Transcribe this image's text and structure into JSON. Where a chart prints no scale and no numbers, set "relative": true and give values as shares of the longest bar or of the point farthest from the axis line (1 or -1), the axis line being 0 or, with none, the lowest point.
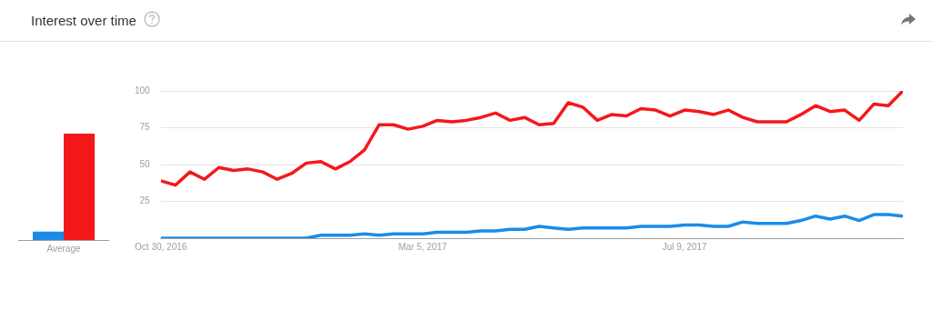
{
  "chart_data": [
    {
      "type": "bar",
      "categories": [
        "Average"
      ],
      "relative": true,
      "grid": false,
      "series": [
        {
          "color": "#1a8ce8",
          "values": [
            0.08
          ]
        },
        {
          "color": "#f4181b",
          "values": [
            1
          ]
        }
      ]
    },
    {
      "type": "line",
      "title": "Interest over time",
      "grid": "y",
      "legend": false,
      "x": [
        "2016-10-30",
        "2016-11-06",
        "2016-11-13",
        "2016-11-20",
        "2016-11-27",
        "2016-12-04",
        "2016-12-11",
        "2016-12-18",
        "2016-12-25",
        "2017-01-01",
        "2017-01-08",
        "2017-01-15",
        "2017-01-22",
        "2017-01-29",
        "2017-02-05",
        "2017-02-12",
        "2017-02-19",
        "2017-02-26",
        "2017-03-05",
        "2017-03-12",
        "2017-03-19",
        "2017-03-26",
        "2017-04-02",
        "2017-04-09",
        "2017-04-16",
        "2017-04-23",
        "2017-04-30",
        "2017-05-07",
        "2017-05-14",
        "2017-05-21",
        "2017-05-28",
        "2017-06-04",
        "2017-06-11",
        "2017-06-18",
        "2017-06-25",
        "2017-07-02",
        "2017-07-09",
        "2017-07-16",
        "2017-07-23",
        "2017-07-30",
        "2017-08-06",
        "2017-08-13",
        "2017-08-20",
        "2017-08-27",
        "2017-09-03",
        "2017-09-10",
        "2017-09-17",
        "2017-09-24",
        "2017-10-01",
        "2017-10-08",
        "2017-10-15",
        "2017-10-22"
      ],
      "xlim": [
        "2016-10-30",
        "2017-10-22"
      ],
      "xticks": [
        {
          "value": "2016-10-30",
          "label": "Oct 30, 2016"
        },
        {
          "value": "2017-03-05",
          "label": "Mar 5, 2017"
        },
        {
          "value": "2017-07-09",
          "label": "Jul 9, 2017"
        }
      ],
      "ylim": [
        0,
        100
      ],
      "yticks": [
        25,
        50,
        75,
        100
      ],
      "series": [
        {
          "color": "#1a8ce8",
          "values": [
            0,
            0,
            0,
            0,
            0,
            0,
            0,
            0,
            0,
            0,
            0,
            2,
            2,
            2,
            3,
            2,
            3,
            3,
            3,
            4,
            4,
            4,
            5,
            5,
            6,
            6,
            8,
            7,
            6,
            7,
            7,
            7,
            7,
            8,
            8,
            8,
            9,
            9,
            8,
            8,
            11,
            10,
            10,
            10,
            12,
            15,
            13,
            15,
            12,
            16,
            16,
            15
          ]
        },
        {
          "color": "#f4181b",
          "values": [
            39,
            36,
            45,
            40,
            48,
            46,
            47,
            45,
            40,
            44,
            51,
            52,
            47,
            52,
            60,
            77,
            77,
            74,
            76,
            80,
            79,
            80,
            82,
            85,
            80,
            82,
            77,
            78,
            92,
            89,
            80,
            84,
            83,
            88,
            87,
            83,
            87,
            86,
            84,
            87,
            82,
            79,
            79,
            79,
            84,
            90,
            86,
            87,
            80,
            91,
            90,
            100
          ]
        }
      ]
    }
  ]
}
